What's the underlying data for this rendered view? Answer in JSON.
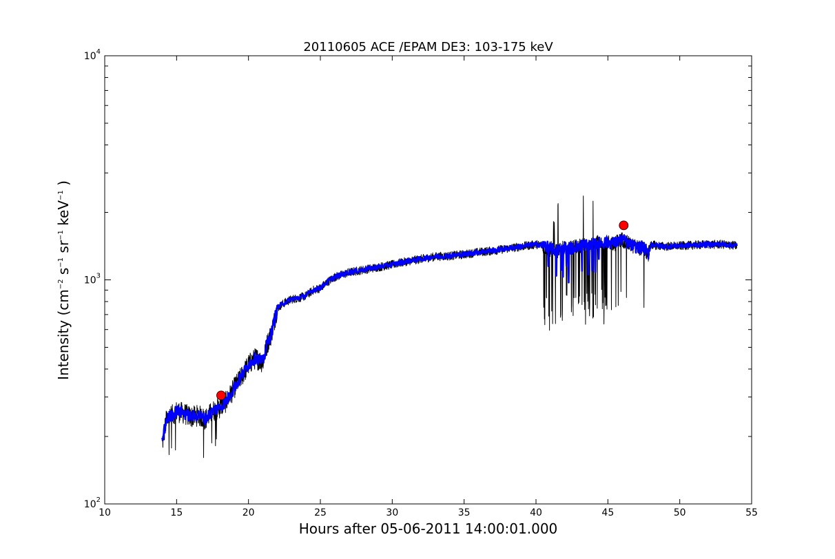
{
  "chart_data": {
    "type": "line",
    "title": "20110605 ACE /EPAM DE3: 103-175 keV",
    "xlabel": "Hours after 05-06-2011 14:00:01.000",
    "ylabel": {
      "prefix": "Intensity (cm",
      "exp1": "−2",
      "mid1": " s",
      "exp2": "−1",
      "mid2": " sr",
      "exp3": "−1",
      "mid3": " keV",
      "exp4": "−1",
      "suffix": " )"
    },
    "xlim": [
      10,
      55
    ],
    "ylim": [
      100,
      10000
    ],
    "yscale": "log",
    "grid": false,
    "x_ticks": [
      "10",
      "15",
      "20",
      "25",
      "30",
      "35",
      "40",
      "45",
      "50",
      "55"
    ],
    "x_tick_values": [
      10,
      15,
      20,
      25,
      30,
      35,
      40,
      45,
      50,
      55
    ],
    "y_ticks": [
      {
        "value": 100,
        "base": "10",
        "exp": "2"
      },
      {
        "value": 1000,
        "base": "10",
        "exp": "3"
      },
      {
        "value": 10000,
        "base": "10",
        "exp": "4"
      }
    ],
    "series": [
      {
        "style": "black raw line",
        "color": "#000000",
        "x": [
          14.0,
          14.3,
          14.7,
          15.0,
          15.5,
          16.0,
          16.5,
          17.0,
          17.5,
          18.0,
          18.5,
          19.0,
          19.5,
          20.0,
          20.5,
          21.0,
          21.3,
          21.6,
          22.0,
          22.5,
          23.0,
          23.5,
          24.0,
          24.5,
          25.0,
          25.5,
          26.0,
          27.0,
          28.0,
          29.0,
          30.0,
          31.0,
          32.0,
          33.0,
          34.0,
          35.0,
          36.0,
          37.0,
          38.0,
          39.0,
          40.0,
          40.5,
          41.0,
          41.5,
          42.0,
          42.5,
          43.0,
          43.5,
          44.0,
          44.5,
          45.0,
          45.5,
          46.0,
          46.5,
          47.0,
          47.5,
          47.8,
          48.0,
          48.5,
          49.0,
          50.0,
          51.0,
          52.0,
          53.0,
          54.0
        ],
        "values": [
          185,
          240,
          250,
          260,
          255,
          245,
          250,
          240,
          260,
          270,
          290,
          330,
          370,
          420,
          450,
          430,
          520,
          580,
          750,
          790,
          820,
          830,
          850,
          900,
          920,
          980,
          1030,
          1080,
          1110,
          1140,
          1170,
          1210,
          1240,
          1270,
          1280,
          1300,
          1330,
          1350,
          1380,
          1410,
          1440,
          1430,
          1380,
          1350,
          1400,
          1380,
          1430,
          1420,
          1450,
          1470,
          1470,
          1460,
          1520,
          1440,
          1400,
          1390,
          1300,
          1440,
          1420,
          1410,
          1420,
          1430,
          1440,
          1440,
          1420
        ]
      },
      {
        "style": "blue smoothed line",
        "color": "#0000ff",
        "x": [
          14.0,
          14.3,
          14.7,
          15.0,
          15.5,
          16.0,
          16.5,
          17.0,
          17.5,
          18.0,
          18.5,
          19.0,
          19.5,
          20.0,
          20.5,
          21.0,
          21.3,
          21.6,
          22.0,
          22.5,
          23.0,
          23.5,
          24.0,
          24.5,
          25.0,
          25.5,
          26.0,
          27.0,
          28.0,
          29.0,
          30.0,
          31.0,
          32.0,
          33.0,
          34.0,
          35.0,
          36.0,
          37.0,
          38.0,
          39.0,
          40.0,
          40.5,
          41.0,
          41.5,
          42.0,
          42.5,
          43.0,
          43.5,
          44.0,
          44.5,
          45.0,
          45.5,
          46.0,
          46.5,
          47.0,
          47.5,
          47.8,
          48.0,
          48.5,
          49.0,
          50.0,
          51.0,
          52.0,
          53.0,
          54.0
        ],
        "values": [
          190,
          240,
          250,
          260,
          255,
          245,
          250,
          240,
          260,
          270,
          290,
          330,
          370,
          420,
          450,
          430,
          520,
          580,
          750,
          790,
          820,
          830,
          850,
          900,
          920,
          980,
          1030,
          1080,
          1110,
          1140,
          1170,
          1210,
          1240,
          1270,
          1280,
          1300,
          1330,
          1350,
          1380,
          1410,
          1440,
          1430,
          1380,
          1350,
          1400,
          1380,
          1430,
          1420,
          1450,
          1470,
          1470,
          1460,
          1520,
          1440,
          1400,
          1390,
          1300,
          1440,
          1420,
          1410,
          1420,
          1430,
          1440,
          1440,
          1420
        ]
      }
    ],
    "markers": [
      {
        "x": 18.1,
        "y": 305,
        "color": "#ff0000",
        "shape": "circle"
      },
      {
        "x": 46.1,
        "y": 1750,
        "color": "#ff0000",
        "shape": "circle"
      }
    ]
  }
}
